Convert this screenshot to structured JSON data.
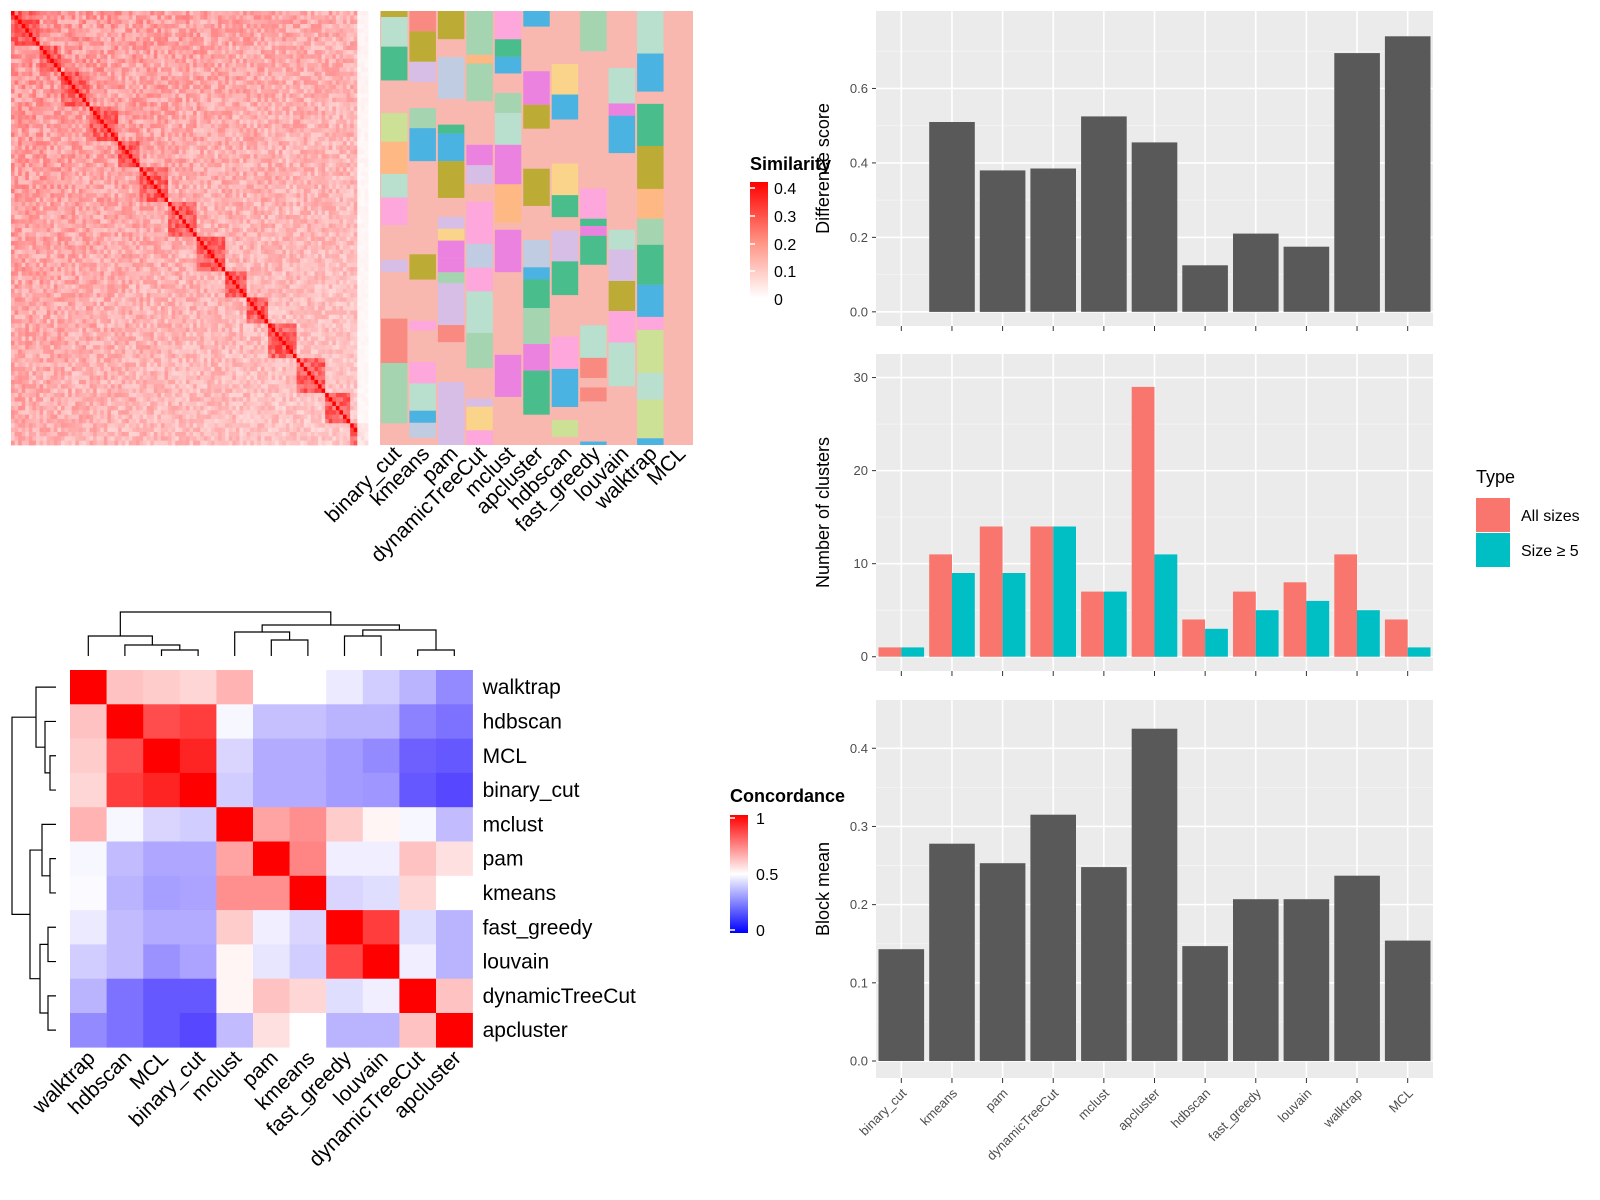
{
  "chart_data": [
    {
      "type": "heatmap",
      "panel": "similarity",
      "n": 100,
      "legend": {
        "title": "Similarity",
        "ticks": [
          "0.4",
          "0.3",
          "0.2",
          "0.1",
          "0"
        ]
      },
      "methods": [
        "binary_cut",
        "kmeans",
        "pam",
        "dynamicTreeCut",
        "mclust",
        "apcluster",
        "hdbscan",
        "fast_greedy",
        "louvain",
        "walktrap",
        "MCL"
      ],
      "colors": {
        "high": "#ff0000",
        "low": "#ffffff",
        "background": "#f8b8b0"
      }
    },
    {
      "type": "heatmap",
      "panel": "concordance",
      "legend": {
        "title": "Concordance",
        "ticks": [
          "1",
          "0.5",
          "0"
        ]
      },
      "labels": [
        "walktrap",
        "hdbscan",
        "MCL",
        "binary_cut",
        "mclust",
        "pam",
        "kmeans",
        "fast_greedy",
        "louvain",
        "dynamicTreeCut",
        "apcluster"
      ],
      "values": [
        [
          1.0,
          0.62,
          0.6,
          0.58,
          0.65,
          0.5,
          0.5,
          0.45,
          0.38,
          0.32,
          0.22
        ],
        [
          0.62,
          1.0,
          0.85,
          0.88,
          0.48,
          0.35,
          0.35,
          0.32,
          0.32,
          0.2,
          0.16
        ],
        [
          0.6,
          0.85,
          1.0,
          0.93,
          0.4,
          0.3,
          0.3,
          0.26,
          0.22,
          0.12,
          0.1
        ],
        [
          0.58,
          0.88,
          0.93,
          1.0,
          0.38,
          0.3,
          0.3,
          0.26,
          0.25,
          0.1,
          0.06
        ],
        [
          0.65,
          0.48,
          0.4,
          0.38,
          1.0,
          0.68,
          0.72,
          0.6,
          0.52,
          0.48,
          0.34
        ],
        [
          0.48,
          0.34,
          0.29,
          0.29,
          0.68,
          1.0,
          0.74,
          0.46,
          0.46,
          0.62,
          0.56
        ],
        [
          0.49,
          0.32,
          0.27,
          0.28,
          0.72,
          0.72,
          1.0,
          0.4,
          0.42,
          0.58,
          0.5
        ],
        [
          0.45,
          0.34,
          0.3,
          0.3,
          0.6,
          0.46,
          0.4,
          1.0,
          0.88,
          0.42,
          0.32
        ],
        [
          0.38,
          0.34,
          0.24,
          0.28,
          0.52,
          0.44,
          0.38,
          0.86,
          1.0,
          0.46,
          0.32
        ],
        [
          0.32,
          0.16,
          0.1,
          0.1,
          0.52,
          0.62,
          0.58,
          0.42,
          0.46,
          1.0,
          0.62
        ],
        [
          0.22,
          0.16,
          0.1,
          0.06,
          0.34,
          0.56,
          0.5,
          0.32,
          0.32,
          0.62,
          1.0
        ]
      ]
    },
    {
      "type": "bar",
      "panel": "difference",
      "ylabel": "Difference score",
      "ylim": [
        0,
        0.77
      ],
      "yticks": [
        "0.0",
        "0.2",
        "0.4",
        "0.6"
      ],
      "categories": [
        "binary_cut",
        "kmeans",
        "pam",
        "dynamicTreeCut",
        "mclust",
        "apcluster",
        "hdbscan",
        "fast_greedy",
        "louvain",
        "walktrap",
        "MCL"
      ],
      "values": [
        0,
        0.51,
        0.38,
        0.385,
        0.525,
        0.455,
        0.125,
        0.21,
        0.175,
        0.695,
        0.74
      ]
    },
    {
      "type": "bar",
      "panel": "clusters",
      "ylabel": "Number of clusters",
      "ylim": [
        0,
        31
      ],
      "yticks": [
        "0",
        "10",
        "20",
        "30"
      ],
      "categories": [
        "binary_cut",
        "kmeans",
        "pam",
        "dynamicTreeCut",
        "mclust",
        "apcluster",
        "hdbscan",
        "fast_greedy",
        "louvain",
        "walktrap",
        "MCL"
      ],
      "legend_title": "Type",
      "series": [
        {
          "name": "All sizes",
          "color": "#f8766d",
          "values": [
            1,
            11,
            14,
            14,
            7,
            29,
            4,
            7,
            8,
            11,
            4
          ]
        },
        {
          "name": "Size ≥ 5",
          "color": "#00bfc4",
          "values": [
            1,
            9,
            9,
            14,
            7,
            11,
            3,
            5,
            6,
            5,
            1
          ]
        }
      ]
    },
    {
      "type": "bar",
      "panel": "blockmean",
      "ylabel": "Block mean",
      "ylim": [
        0,
        0.44
      ],
      "yticks": [
        "0.0",
        "0.1",
        "0.2",
        "0.3",
        "0.4"
      ],
      "categories": [
        "binary_cut",
        "kmeans",
        "pam",
        "dynamicTreeCut",
        "mclust",
        "apcluster",
        "hdbscan",
        "fast_greedy",
        "louvain",
        "walktrap",
        "MCL"
      ],
      "values": [
        0.143,
        0.278,
        0.253,
        0.315,
        0.248,
        0.425,
        0.147,
        0.207,
        0.207,
        0.237,
        0.154
      ]
    }
  ]
}
